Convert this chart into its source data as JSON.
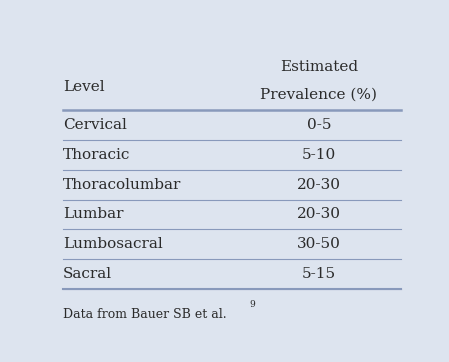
{
  "header_col1": "Level",
  "header_col2_line1": "Estimated",
  "header_col2_line2": "Prevalence (%)",
  "rows": [
    [
      "Cervical",
      "0-5"
    ],
    [
      "Thoracic",
      "5-10"
    ],
    [
      "Thoracolumbar",
      "20-30"
    ],
    [
      "Lumbar",
      "20-30"
    ],
    [
      "Lumbosacral",
      "30-50"
    ],
    [
      "Sacral",
      "5-15"
    ]
  ],
  "footnote": "Data from Bauer SB et al.",
  "footnote_superscript": "9",
  "background_color": "#dde4ef",
  "text_color": "#2b2b2b",
  "line_color": "#8899bb",
  "font_size": 11,
  "header_font_size": 11
}
